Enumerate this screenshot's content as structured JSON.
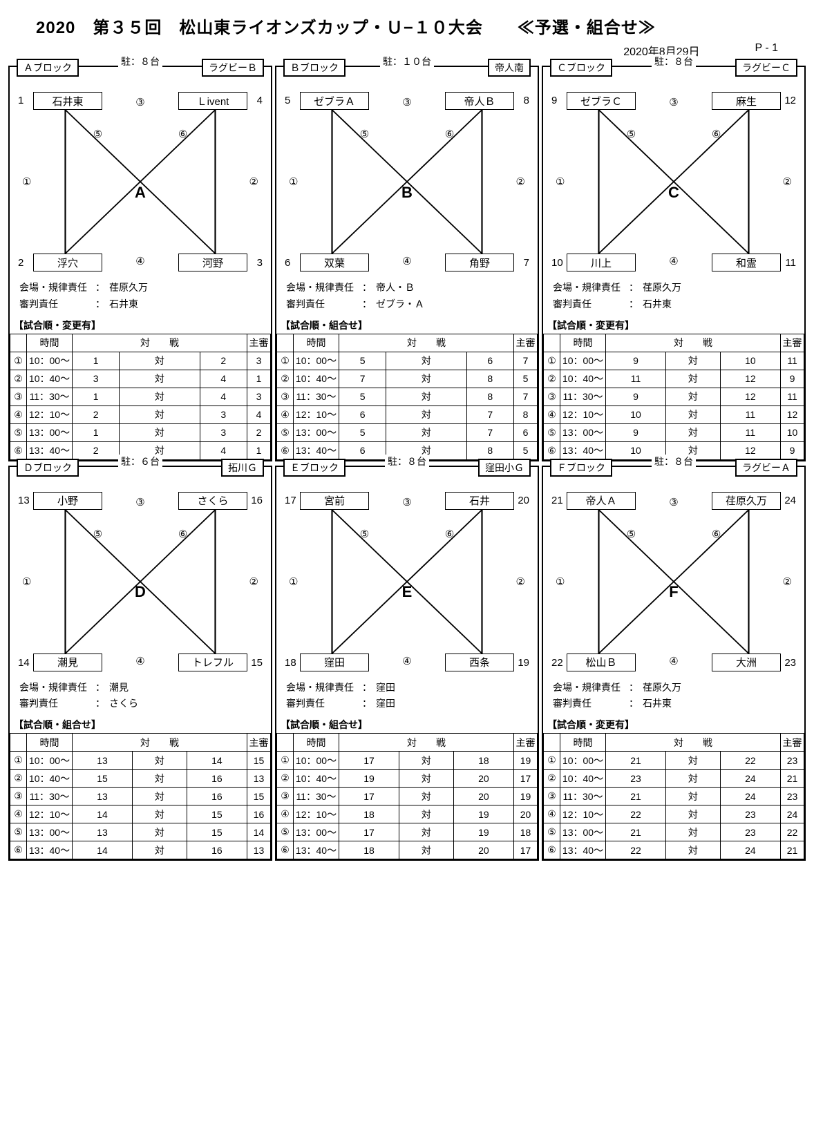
{
  "header": {
    "title": "2020　第３５回　松山東ライオンズカップ・Ｕ−１０大会　　≪予選・組合せ≫",
    "date": "2020年8月29日",
    "page": "P - 1"
  },
  "circled": [
    "①",
    "②",
    "③",
    "④",
    "⑤",
    "⑥"
  ],
  "labels": {
    "parking_prefix": "駐：",
    "parking_suffix": "台",
    "venue": "会場・規律責任",
    "referee": "審判責任",
    "time": "時間",
    "match": "対　　戦",
    "main_ref": "主審",
    "vs": "対"
  },
  "blocks": [
    {
      "id": "A",
      "name": "Ａブロック",
      "venue_label": "ラグビーＢ",
      "parking": "８",
      "teams": [
        {
          "n": "1",
          "name": "石井東"
        },
        {
          "n": "4",
          "name": "Ｌivent"
        },
        {
          "n": "2",
          "name": "浮穴"
        },
        {
          "n": "3",
          "name": "河野"
        }
      ],
      "venue": "荏原久万",
      "referee": "石井東",
      "sched_title": "【試合順・変更有】",
      "rows": [
        {
          "t": "10：00～",
          "a": "1",
          "b": "2",
          "r": "3"
        },
        {
          "t": "10：40～",
          "a": "3",
          "b": "4",
          "r": "1"
        },
        {
          "t": "11：30～",
          "a": "1",
          "b": "4",
          "r": "3"
        },
        {
          "t": "12：10～",
          "a": "2",
          "b": "3",
          "r": "4"
        },
        {
          "t": "13：00～",
          "a": "1",
          "b": "3",
          "r": "2"
        },
        {
          "t": "13：40～",
          "a": "2",
          "b": "4",
          "r": "1"
        }
      ]
    },
    {
      "id": "B",
      "name": "Ｂブロック",
      "venue_label": "帝人南",
      "parking": "１０",
      "teams": [
        {
          "n": "5",
          "name": "ゼブラＡ"
        },
        {
          "n": "8",
          "name": "帝人Ｂ"
        },
        {
          "n": "6",
          "name": "双葉"
        },
        {
          "n": "7",
          "name": "角野"
        }
      ],
      "venue": "帝人・Ｂ",
      "referee": "ゼブラ・Ａ",
      "sched_title": "【試合順・組合せ】",
      "rows": [
        {
          "t": "10：00～",
          "a": "5",
          "b": "6",
          "r": "7"
        },
        {
          "t": "10：40～",
          "a": "7",
          "b": "8",
          "r": "5"
        },
        {
          "t": "11：30～",
          "a": "5",
          "b": "8",
          "r": "7"
        },
        {
          "t": "12：10～",
          "a": "6",
          "b": "7",
          "r": "8"
        },
        {
          "t": "13：00～",
          "a": "5",
          "b": "7",
          "r": "6"
        },
        {
          "t": "13：40～",
          "a": "6",
          "b": "8",
          "r": "5"
        }
      ]
    },
    {
      "id": "C",
      "name": "Ｃブロック",
      "venue_label": "ラグビーＣ",
      "parking": "８",
      "teams": [
        {
          "n": "9",
          "name": "ゼブラＣ"
        },
        {
          "n": "12",
          "name": "麻生"
        },
        {
          "n": "10",
          "name": "川上"
        },
        {
          "n": "11",
          "name": "和霊"
        }
      ],
      "venue": "荏原久万",
      "referee": "石井東",
      "sched_title": "【試合順・変更有】",
      "rows": [
        {
          "t": "10：00～",
          "a": "9",
          "b": "10",
          "r": "11"
        },
        {
          "t": "10：40～",
          "a": "11",
          "b": "12",
          "r": "9"
        },
        {
          "t": "11：30～",
          "a": "9",
          "b": "12",
          "r": "11"
        },
        {
          "t": "12：10～",
          "a": "10",
          "b": "11",
          "r": "12"
        },
        {
          "t": "13：00～",
          "a": "9",
          "b": "11",
          "r": "10"
        },
        {
          "t": "13：40～",
          "a": "10",
          "b": "12",
          "r": "9"
        }
      ]
    },
    {
      "id": "D",
      "name": "Ｄブロック",
      "venue_label": "拓川Ｇ",
      "parking": "６",
      "teams": [
        {
          "n": "13",
          "name": "小野"
        },
        {
          "n": "16",
          "name": "さくら"
        },
        {
          "n": "14",
          "name": "潮見"
        },
        {
          "n": "15",
          "name": "トレフル"
        }
      ],
      "venue": "潮見",
      "referee": "さくら",
      "sched_title": "【試合順・組合せ】",
      "rows": [
        {
          "t": "10：00～",
          "a": "13",
          "b": "14",
          "r": "15"
        },
        {
          "t": "10：40～",
          "a": "15",
          "b": "16",
          "r": "13"
        },
        {
          "t": "11：30～",
          "a": "13",
          "b": "16",
          "r": "15"
        },
        {
          "t": "12：10～",
          "a": "14",
          "b": "15",
          "r": "16"
        },
        {
          "t": "13：00～",
          "a": "13",
          "b": "15",
          "r": "14"
        },
        {
          "t": "13：40～",
          "a": "14",
          "b": "16",
          "r": "13"
        }
      ]
    },
    {
      "id": "E",
      "name": "Ｅブロック",
      "venue_label": "窪田小Ｇ",
      "parking": "８",
      "teams": [
        {
          "n": "17",
          "name": "宮前"
        },
        {
          "n": "20",
          "name": "石井"
        },
        {
          "n": "18",
          "name": "窪田"
        },
        {
          "n": "19",
          "name": "西条"
        }
      ],
      "venue": "窪田",
      "referee": "窪田",
      "sched_title": "【試合順・組合せ】",
      "rows": [
        {
          "t": "10：00～",
          "a": "17",
          "b": "18",
          "r": "19"
        },
        {
          "t": "10：40～",
          "a": "19",
          "b": "20",
          "r": "17"
        },
        {
          "t": "11：30～",
          "a": "17",
          "b": "20",
          "r": "19"
        },
        {
          "t": "12：10～",
          "a": "18",
          "b": "19",
          "r": "20"
        },
        {
          "t": "13：00～",
          "a": "17",
          "b": "19",
          "r": "18"
        },
        {
          "t": "13：40～",
          "a": "18",
          "b": "20",
          "r": "17"
        }
      ]
    },
    {
      "id": "F",
      "name": "Ｆブロック",
      "venue_label": "ラグビーＡ",
      "parking": "８",
      "teams": [
        {
          "n": "21",
          "name": "帝人Ａ"
        },
        {
          "n": "24",
          "name": "荏原久万"
        },
        {
          "n": "22",
          "name": "松山Ｂ"
        },
        {
          "n": "23",
          "name": "大洲"
        }
      ],
      "venue": "荏原久万",
      "referee": "石井東",
      "sched_title": "【試合順・変更有】",
      "rows": [
        {
          "t": "10：00～",
          "a": "21",
          "b": "22",
          "r": "23"
        },
        {
          "t": "10：40～",
          "a": "23",
          "b": "24",
          "r": "21"
        },
        {
          "t": "11：30～",
          "a": "21",
          "b": "24",
          "r": "23"
        },
        {
          "t": "12：10～",
          "a": "22",
          "b": "23",
          "r": "24"
        },
        {
          "t": "13：00～",
          "a": "21",
          "b": "23",
          "r": "22"
        },
        {
          "t": "13：40～",
          "a": "22",
          "b": "24",
          "r": "21"
        }
      ]
    }
  ]
}
